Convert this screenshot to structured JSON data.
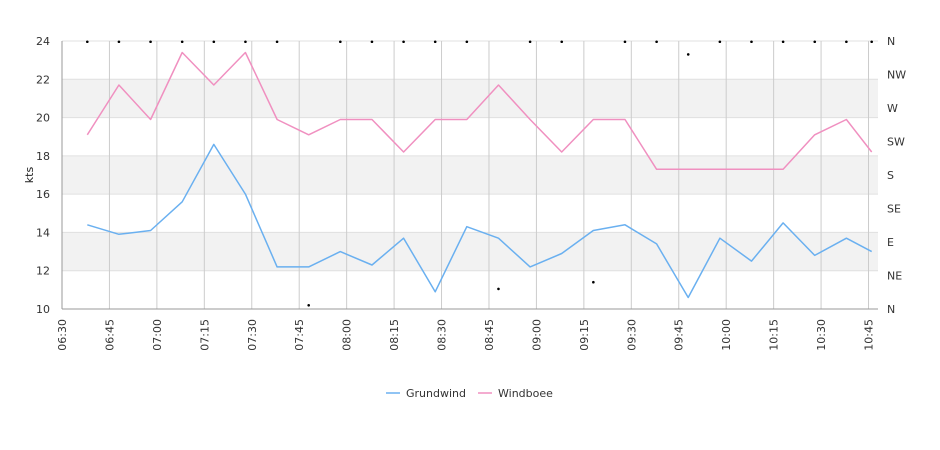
{
  "chart_data": {
    "type": "line",
    "ylabel": "kts",
    "ylim": [
      10,
      24
    ],
    "yticks": [
      10,
      12,
      14,
      16,
      18,
      20,
      22,
      24
    ],
    "y2ticks": [
      "N",
      "NE",
      "E",
      "SE",
      "S",
      "SW",
      "W",
      "NW",
      "N"
    ],
    "y2lim": [
      0,
      360
    ],
    "xlim": [
      "06:30",
      "10:48"
    ],
    "xticks": [
      "06:30",
      "06:45",
      "07:00",
      "07:15",
      "07:30",
      "07:45",
      "08:00",
      "08:15",
      "08:30",
      "08:45",
      "09:00",
      "09:15",
      "09:30",
      "09:45",
      "10:00",
      "10:15",
      "10:30",
      "10:45"
    ],
    "grid": true,
    "legend_position": "bottom",
    "series": [
      {
        "name": "Grundwind",
        "color": "#6ab0f0",
        "x": [
          "06:38",
          "06:48",
          "06:58",
          "07:08",
          "07:18",
          "07:28",
          "07:38",
          "07:48",
          "07:58",
          "08:08",
          "08:18",
          "08:28",
          "08:38",
          "08:48",
          "08:58",
          "09:08",
          "09:18",
          "09:28",
          "09:38",
          "09:48",
          "09:58",
          "10:08",
          "10:18",
          "10:28",
          "10:38",
          "10:46"
        ],
        "values": [
          14.4,
          13.9,
          14.1,
          15.6,
          18.6,
          16.0,
          12.2,
          12.2,
          13.0,
          12.3,
          13.7,
          10.9,
          14.3,
          13.7,
          12.2,
          12.9,
          14.1,
          14.4,
          13.4,
          10.6,
          13.7,
          12.5,
          14.5,
          12.8,
          13.7,
          13.0
        ]
      },
      {
        "name": "Windboee",
        "color": "#f090c0",
        "x": [
          "06:38",
          "06:48",
          "06:58",
          "07:08",
          "07:18",
          "07:28",
          "07:38",
          "07:48",
          "07:58",
          "08:08",
          "08:18",
          "08:28",
          "08:38",
          "08:48",
          "08:58",
          "09:08",
          "09:18",
          "09:28",
          "09:38",
          "09:48",
          "09:58",
          "10:08",
          "10:18",
          "10:28",
          "10:38",
          "10:46"
        ],
        "values": [
          19.1,
          21.7,
          19.9,
          23.4,
          21.7,
          23.4,
          19.9,
          19.1,
          19.9,
          19.9,
          18.2,
          19.9,
          19.9,
          21.7,
          19.9,
          18.2,
          19.9,
          19.9,
          17.3,
          17.3,
          17.3,
          17.3,
          17.3,
          19.1,
          19.9,
          18.2
        ]
      }
    ],
    "direction_points": {
      "color": "#000000",
      "x": [
        "06:38",
        "06:48",
        "06:58",
        "07:08",
        "07:18",
        "07:28",
        "07:38",
        "07:48",
        "07:58",
        "08:08",
        "08:18",
        "08:28",
        "08:38",
        "08:48",
        "08:58",
        "09:08",
        "09:18",
        "09:28",
        "09:38",
        "09:48",
        "09:58",
        "10:08",
        "10:18",
        "10:28",
        "10:38",
        "10:46"
      ],
      "degrees": [
        359,
        359,
        359,
        359,
        359,
        359,
        359,
        5,
        359,
        359,
        359,
        359,
        359,
        27,
        359,
        359,
        36,
        359,
        359,
        342,
        359,
        359,
        359,
        359,
        359,
        359
      ]
    }
  }
}
